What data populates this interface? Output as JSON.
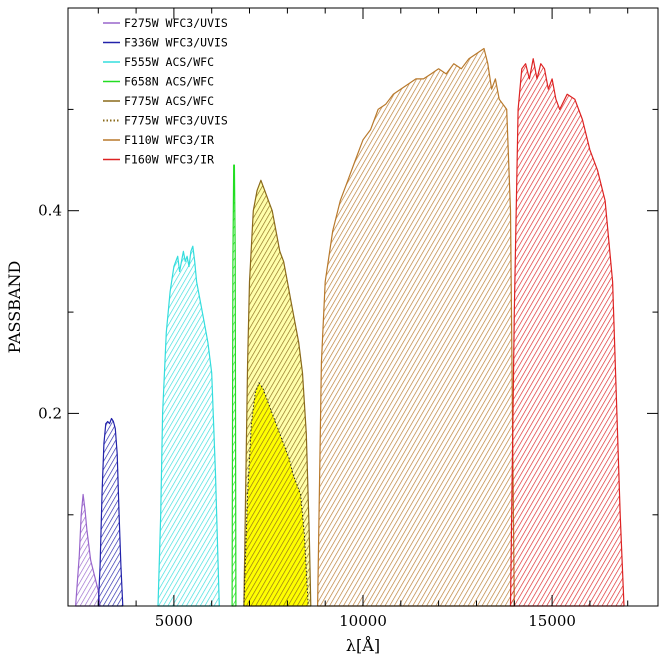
{
  "chart_data": {
    "type": "area",
    "xlabel": "λ[Å]",
    "ylabel": "PASSBAND",
    "xlim": [
      2200,
      17800
    ],
    "ylim": [
      0.01,
      0.6
    ],
    "x_major_ticks": [
      5000,
      10000,
      15000
    ],
    "x_minor_step": 1000,
    "y_major_ticks": [
      0.2,
      0.4
    ],
    "y_minor_step": 0.1,
    "legend_position": "top-left",
    "series": [
      {
        "name": "F275W WFC3/UVIS",
        "color": "#9966cc",
        "style": "hatch",
        "x": [
          2400,
          2500,
          2550,
          2600,
          2650,
          2700,
          2750,
          2800,
          2900,
          3000,
          3050
        ],
        "y": [
          0.01,
          0.06,
          0.1,
          0.12,
          0.105,
          0.085,
          0.07,
          0.055,
          0.04,
          0.025,
          0.01
        ]
      },
      {
        "name": "F336W WFC3/UVIS",
        "color": "#2222aa",
        "style": "hatch",
        "x": [
          3000,
          3050,
          3100,
          3150,
          3200,
          3250,
          3300,
          3350,
          3400,
          3450,
          3500,
          3550,
          3600,
          3650
        ],
        "y": [
          0.01,
          0.05,
          0.12,
          0.17,
          0.19,
          0.192,
          0.19,
          0.195,
          0.192,
          0.185,
          0.16,
          0.1,
          0.05,
          0.01
        ]
      },
      {
        "name": "F555W ACS/WFC",
        "color": "#33dddd",
        "style": "hatch",
        "x": [
          4580,
          4650,
          4700,
          4800,
          4900,
          5000,
          5100,
          5150,
          5200,
          5250,
          5300,
          5350,
          5400,
          5450,
          5500,
          5550,
          5600,
          5700,
          5800,
          5900,
          6000,
          6100,
          6200
        ],
        "y": [
          0.01,
          0.1,
          0.2,
          0.28,
          0.32,
          0.345,
          0.355,
          0.34,
          0.35,
          0.36,
          0.35,
          0.355,
          0.345,
          0.36,
          0.365,
          0.35,
          0.33,
          0.31,
          0.29,
          0.27,
          0.24,
          0.14,
          0.01
        ]
      },
      {
        "name": "F658N ACS/WFC",
        "color": "#22dd22",
        "style": "hatch",
        "x": [
          6540,
          6560,
          6580,
          6600,
          6620,
          6640
        ],
        "y": [
          0.01,
          0.35,
          0.445,
          0.445,
          0.36,
          0.01
        ]
      },
      {
        "name": "F775W ACS/WFC",
        "color": "#8a6a1a",
        "style": "hatch",
        "x": [
          6850,
          6950,
          7000,
          7100,
          7200,
          7300,
          7400,
          7500,
          7600,
          7700,
          7800,
          7900,
          8000,
          8100,
          8200,
          8300,
          8400,
          8500,
          8580,
          8620
        ],
        "y": [
          0.01,
          0.25,
          0.33,
          0.4,
          0.42,
          0.43,
          0.42,
          0.41,
          0.4,
          0.38,
          0.36,
          0.35,
          0.33,
          0.31,
          0.29,
          0.27,
          0.24,
          0.18,
          0.08,
          0.01
        ]
      },
      {
        "name": "F775W WFC3/UVIS",
        "color": "#8a6a1a",
        "style": "dotted",
        "x": [
          6850,
          6950,
          7050,
          7150,
          7250,
          7350,
          7450,
          7550,
          7650,
          7750,
          7850,
          7950,
          8050,
          8150,
          8250,
          8350,
          8450,
          8550
        ],
        "y": [
          0.01,
          0.12,
          0.19,
          0.22,
          0.23,
          0.225,
          0.215,
          0.205,
          0.195,
          0.185,
          0.175,
          0.165,
          0.155,
          0.14,
          0.13,
          0.12,
          0.08,
          0.01
        ]
      },
      {
        "name": "F110W WFC3/IR",
        "color": "#b8792c",
        "style": "hatch",
        "x": [
          8800,
          8900,
          9000,
          9200,
          9400,
          9600,
          9800,
          10000,
          10200,
          10400,
          10600,
          10800,
          11000,
          11200,
          11400,
          11600,
          11800,
          12000,
          12200,
          12400,
          12600,
          12800,
          13000,
          13200,
          13300,
          13400,
          13500,
          13600,
          13800,
          13900,
          14000
        ],
        "y": [
          0.01,
          0.25,
          0.33,
          0.38,
          0.41,
          0.43,
          0.45,
          0.47,
          0.48,
          0.5,
          0.505,
          0.515,
          0.52,
          0.525,
          0.53,
          0.53,
          0.535,
          0.54,
          0.535,
          0.545,
          0.54,
          0.55,
          0.555,
          0.56,
          0.545,
          0.52,
          0.53,
          0.51,
          0.5,
          0.4,
          0.01
        ]
      },
      {
        "name": "F160W WFC3/IR",
        "color": "#dd2222",
        "style": "hatch",
        "x": [
          13900,
          14000,
          14100,
          14200,
          14300,
          14400,
          14500,
          14600,
          14700,
          14800,
          14900,
          15000,
          15100,
          15200,
          15400,
          15600,
          15800,
          16000,
          16200,
          16400,
          16600,
          16800,
          16900
        ],
        "y": [
          0.01,
          0.3,
          0.5,
          0.54,
          0.545,
          0.53,
          0.55,
          0.53,
          0.545,
          0.54,
          0.52,
          0.53,
          0.51,
          0.5,
          0.515,
          0.51,
          0.49,
          0.46,
          0.44,
          0.41,
          0.33,
          0.1,
          0.01
        ]
      }
    ]
  }
}
